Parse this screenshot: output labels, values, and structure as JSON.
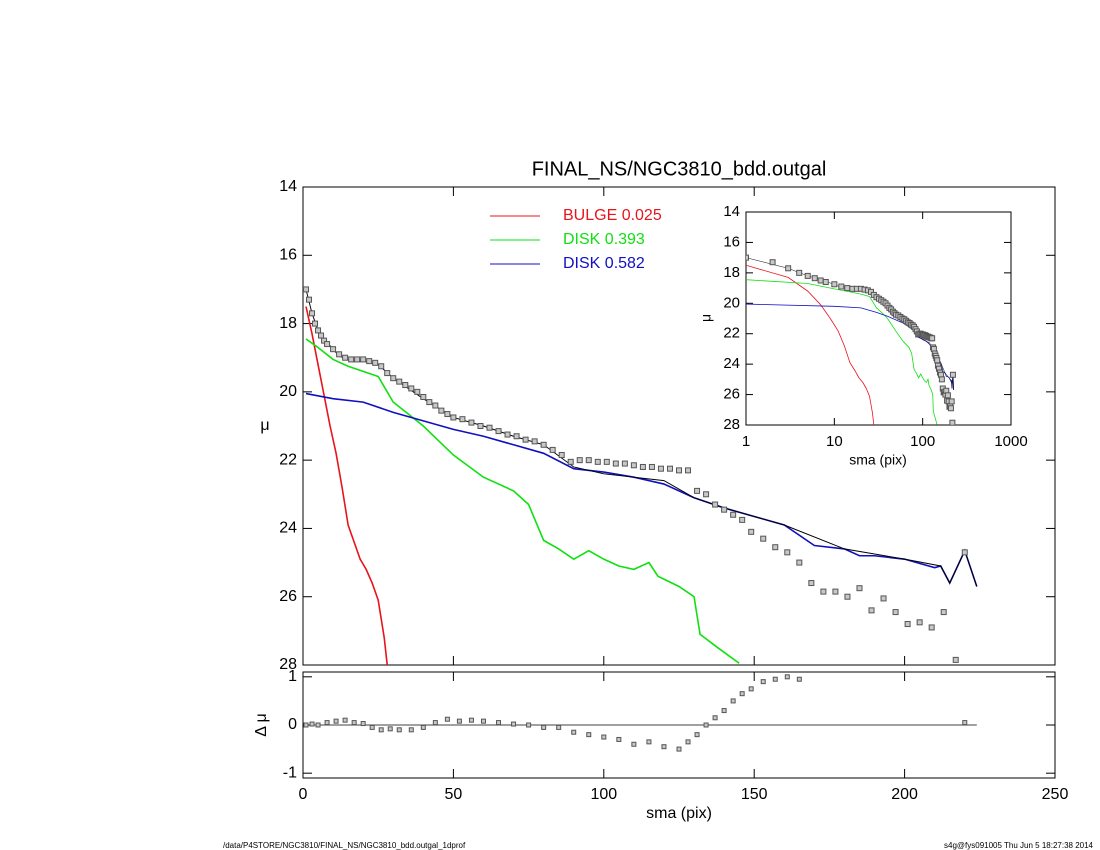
{
  "chart_data": [
    {
      "type": "line",
      "title": "FINAL_NS/NGC3810_bdd.outgal",
      "ylabel": "μ",
      "xlim": [
        0,
        250
      ],
      "xticks": [
        0,
        50,
        100,
        150,
        200,
        250
      ],
      "ylim": [
        28,
        14
      ],
      "yticks": [
        14,
        16,
        18,
        20,
        22,
        24,
        26,
        28
      ],
      "series": [
        {
          "name": "BULGE  0.025",
          "color": "#e8141c",
          "x": [
            1,
            3,
            5,
            7,
            9,
            11,
            13,
            15,
            17,
            19,
            21,
            23,
            25,
            27,
            28
          ],
          "values": [
            17.5,
            18.3,
            19.2,
            20.1,
            21.0,
            21.8,
            22.8,
            23.9,
            24.4,
            24.9,
            25.2,
            25.6,
            26.1,
            27.2,
            28.0
          ]
        },
        {
          "name": "DISK  0.393",
          "color": "#10e010",
          "x": [
            1,
            5,
            10,
            15,
            20,
            25,
            30,
            35,
            40,
            50,
            60,
            70,
            75,
            80,
            85,
            90,
            95,
            100,
            105,
            110,
            115,
            118,
            125,
            130,
            132,
            138,
            145
          ],
          "values": [
            18.45,
            18.7,
            19.05,
            19.25,
            19.4,
            19.55,
            20.3,
            20.65,
            21.0,
            21.85,
            22.5,
            22.9,
            23.3,
            24.35,
            24.6,
            24.9,
            24.65,
            24.9,
            25.1,
            25.2,
            25.0,
            25.4,
            25.7,
            26.0,
            27.1,
            27.5,
            27.95
          ]
        },
        {
          "name": "DISK  0.582",
          "color": "#1010c0",
          "x": [
            1,
            10,
            20,
            30,
            40,
            50,
            60,
            70,
            80,
            90,
            100,
            110,
            120,
            130,
            140,
            150,
            160,
            170,
            180,
            185,
            190,
            200,
            210,
            212,
            215,
            220,
            224
          ],
          "values": [
            20.05,
            20.2,
            20.3,
            20.6,
            20.85,
            21.1,
            21.3,
            21.55,
            21.8,
            22.25,
            22.35,
            22.5,
            22.7,
            23.1,
            23.4,
            23.65,
            23.9,
            24.5,
            24.6,
            24.8,
            24.8,
            24.9,
            25.15,
            25.1,
            25.6,
            24.65,
            25.7
          ]
        },
        {
          "color": "#000000",
          "x": [
            1,
            3,
            5,
            8,
            12,
            16,
            20,
            25,
            30,
            40,
            50,
            60,
            70,
            80,
            90,
            100,
            110,
            120,
            130,
            140,
            160,
            180,
            200,
            212,
            215,
            220,
            224
          ],
          "values": [
            17.0,
            17.7,
            18.2,
            18.55,
            18.95,
            19.1,
            19.1,
            19.2,
            19.6,
            20.2,
            20.75,
            21.0,
            21.3,
            21.55,
            22.2,
            22.4,
            22.5,
            22.6,
            23.1,
            23.4,
            23.9,
            24.6,
            24.9,
            25.1,
            25.6,
            24.65,
            25.7
          ]
        },
        {
          "color": "#555555",
          "marker": "square",
          "x": [
            1,
            2,
            3,
            4,
            5,
            6,
            7,
            8,
            10,
            12,
            14,
            16,
            18,
            20,
            22,
            24,
            26,
            28,
            30,
            32,
            34,
            36,
            38,
            40,
            42,
            44,
            46,
            48,
            50,
            53,
            56,
            59,
            62,
            65,
            68,
            71,
            74,
            77,
            80,
            83,
            86,
            89,
            92,
            95,
            98,
            101,
            104,
            107,
            110,
            113,
            116,
            119,
            122,
            125,
            128,
            131,
            134,
            137,
            140,
            143,
            146,
            149,
            153,
            157,
            161,
            165,
            169,
            173,
            177,
            181,
            185,
            189,
            193,
            197,
            201,
            205,
            209,
            213,
            217,
            220
          ],
          "values": [
            17.0,
            17.3,
            17.7,
            18.0,
            18.2,
            18.35,
            18.5,
            18.6,
            18.75,
            18.9,
            19.0,
            19.05,
            19.05,
            19.05,
            19.1,
            19.15,
            19.25,
            19.45,
            19.6,
            19.7,
            19.8,
            19.9,
            20.0,
            20.15,
            20.3,
            20.4,
            20.55,
            20.65,
            20.75,
            20.8,
            20.9,
            21.0,
            21.05,
            21.15,
            21.25,
            21.3,
            21.4,
            21.45,
            21.55,
            21.7,
            21.85,
            22.05,
            22.0,
            22.0,
            22.05,
            22.05,
            22.1,
            22.1,
            22.15,
            22.2,
            22.2,
            22.25,
            22.25,
            22.3,
            22.3,
            22.9,
            23.0,
            23.3,
            23.45,
            23.6,
            23.75,
            24.1,
            24.3,
            24.55,
            24.7,
            25.0,
            25.6,
            25.85,
            25.85,
            26.0,
            25.75,
            26.4,
            26.05,
            26.45,
            26.8,
            26.75,
            26.9,
            26.45,
            27.85,
            24.7
          ]
        }
      ]
    },
    {
      "type": "line",
      "xlabel": "sma (pix)",
      "ylabel": "Δ μ",
      "xlim": [
        0,
        250
      ],
      "xticks": [
        0,
        50,
        100,
        150,
        200,
        250
      ],
      "ylim": [
        -1.1,
        1.1
      ],
      "yticks": [
        -1,
        0,
        1
      ],
      "series": [
        {
          "color": "#555555",
          "marker": "square",
          "x": [
            1,
            3,
            5,
            8,
            11,
            14,
            17,
            20,
            23,
            26,
            29,
            32,
            36,
            40,
            44,
            48,
            52,
            56,
            60,
            65,
            70,
            75,
            80,
            85,
            90,
            95,
            100,
            105,
            110,
            115,
            120,
            125,
            128,
            131,
            134,
            137,
            140,
            143,
            146,
            149,
            153,
            157,
            161,
            165,
            220
          ],
          "values": [
            0.0,
            0.02,
            0.0,
            0.05,
            0.08,
            0.1,
            0.05,
            0.03,
            -0.05,
            -0.1,
            -0.08,
            -0.1,
            -0.1,
            -0.05,
            0.05,
            0.12,
            0.08,
            0.1,
            0.08,
            0.05,
            0.02,
            0.0,
            -0.05,
            -0.05,
            -0.15,
            -0.2,
            -0.25,
            -0.3,
            -0.4,
            -0.35,
            -0.45,
            -0.5,
            -0.35,
            -0.2,
            0.0,
            0.15,
            0.3,
            0.5,
            0.65,
            0.75,
            0.9,
            0.95,
            1.0,
            0.95,
            0.05
          ]
        }
      ]
    },
    {
      "type": "line",
      "xlabel": "sma (pix)",
      "ylabel": "μ",
      "log_x": true,
      "xlim": [
        1,
        1000
      ],
      "xticks": [
        1,
        10,
        100,
        1000
      ],
      "ylim": [
        28,
        14
      ],
      "yticks": [
        14,
        16,
        18,
        20,
        22,
        24,
        26,
        28
      ]
    }
  ],
  "footer": {
    "left": "/data/P4STORE/NGC3810/FINAL_NS/NGC3810_bdd.outgal_1dprof",
    "right": "s4g@fys091005  Thu Jun  5 18:27:38 2014"
  }
}
